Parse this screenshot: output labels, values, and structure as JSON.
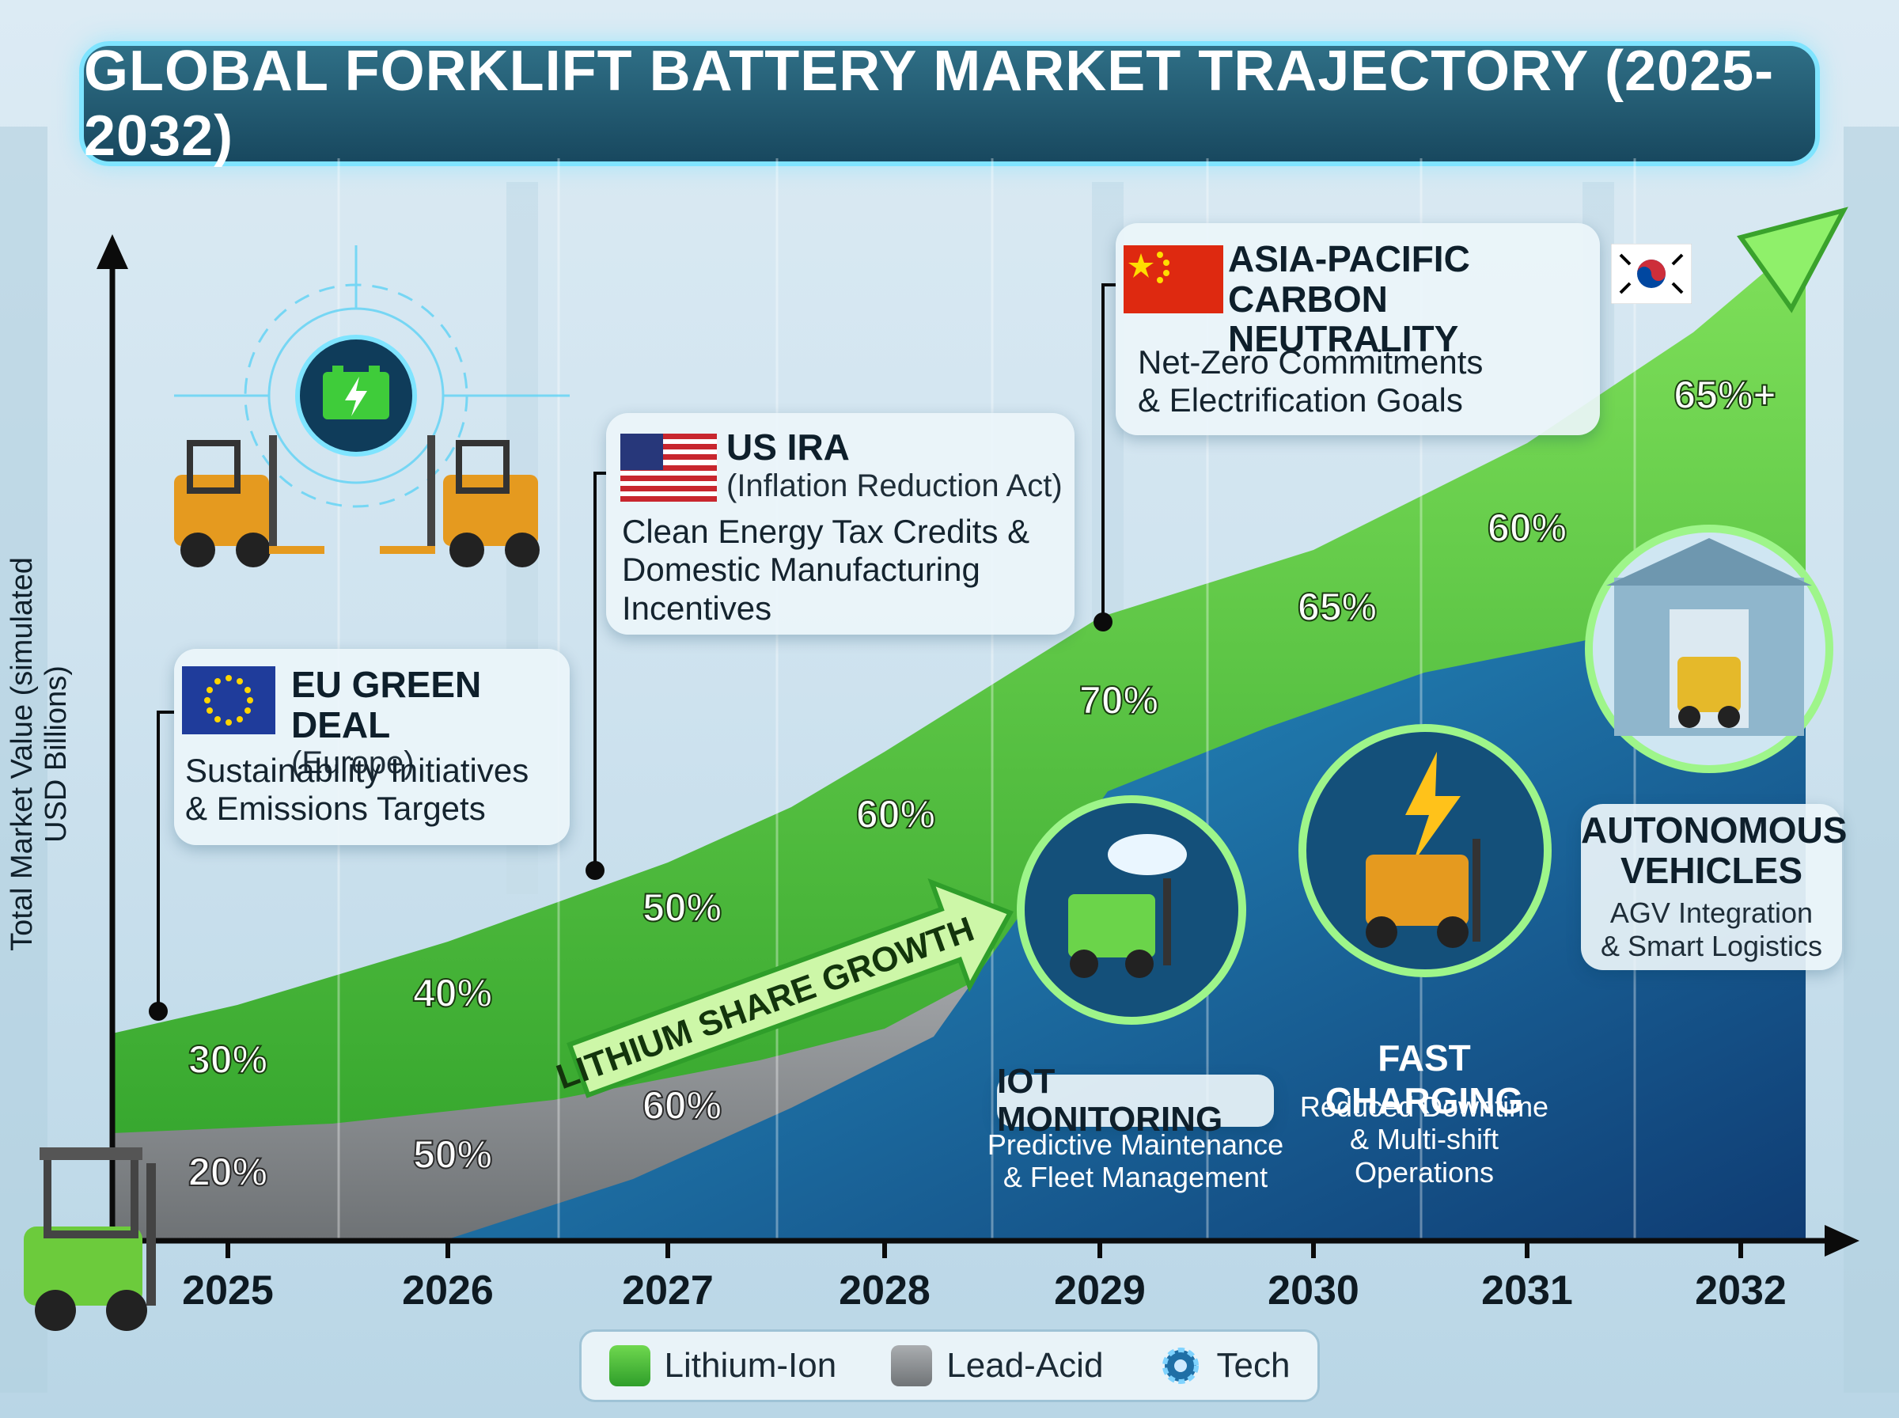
{
  "title": "GLOBAL FORKLIFT BATTERY MARKET TRAJECTORY (2025-2032)",
  "colors": {
    "lithium": "#4cc63a",
    "lead": "#8e9296",
    "tech": "#1f6fa6",
    "title_bg": "#1f5670",
    "accent": "#7fe4ff"
  },
  "chart_data": {
    "type": "area",
    "title": "GLOBAL FORKLIFT BATTERY MARKET TRAJECTORY (2025-2032)",
    "ylabel": "Total Market Value (simulated USD Billions)",
    "xlabel": "",
    "categories": [
      "2025",
      "2026",
      "2027",
      "2028",
      "2029",
      "2030",
      "2031",
      "2032"
    ],
    "series": [
      {
        "name": "Lithium-Ion",
        "labels": [
          "30%",
          "40%",
          "50%",
          "60%",
          "70%",
          "65%",
          "60%",
          "65%+"
        ]
      },
      {
        "name": "Lead-Acid",
        "labels": [
          "20%",
          "50%",
          "60%"
        ]
      }
    ],
    "annotation": "LITHIUM SHARE GROWTH",
    "legend": [
      "Lithium-Ion",
      "Lead-Acid",
      "Tech"
    ],
    "legend_position": "bottom-center"
  },
  "callouts": {
    "eu": {
      "title": "EU GREEN DEAL",
      "sub": "(Europe)",
      "text1": "Sustainability Initiatives",
      "text2": "& Emissions Targets"
    },
    "us": {
      "title": "US IRA",
      "sub": "(Inflation Reduction Act)",
      "text1": "Clean Energy Tax Credits &",
      "text2": "Domestic Manufacturing",
      "text3": "Incentives"
    },
    "apac": {
      "title1": "ASIA-PACIFIC",
      "title2": "CARBON NEUTRALITY",
      "text1": "Net-Zero Commitments",
      "text2": "& Electrification Goals"
    }
  },
  "features": {
    "iot": {
      "title": "IOT MONITORING",
      "text1": "Predictive Maintenance",
      "text2": "& Fleet Management"
    },
    "charging": {
      "title": "FAST CHARGING",
      "text1": "Reduced Downtime",
      "text2": "& Multi-shift",
      "text3": "Operations"
    },
    "autonomous": {
      "title1": "AUTONOMOUS",
      "title2": "VEHICLES",
      "text1": "AGV Integration",
      "text2": "& Smart Logistics"
    }
  },
  "legend": {
    "lithium": "Lithium-Ion",
    "lead": "Lead-Acid",
    "tech": "Tech"
  }
}
